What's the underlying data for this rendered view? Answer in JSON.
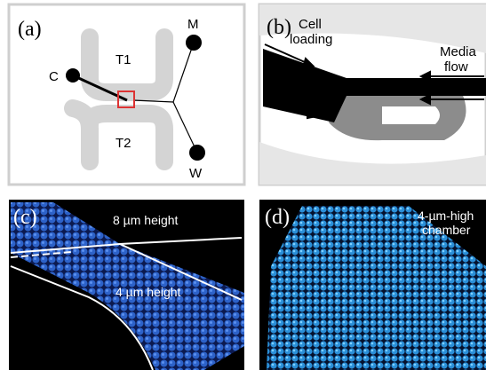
{
  "panels": [
    {
      "label": "(a)",
      "texts": [
        "T1",
        "T2",
        "C",
        "M",
        "W"
      ]
    },
    {
      "label": "(b)",
      "texts": [
        [
          "Cell",
          "loading"
        ],
        [
          "Media",
          "flow"
        ]
      ]
    },
    {
      "label": "(c)",
      "texts": [
        "8 µm height",
        "4 µm height"
      ]
    },
    {
      "label": "(d)",
      "texts": [
        [
          "4-µm-high",
          "chamber"
        ]
      ]
    }
  ]
}
